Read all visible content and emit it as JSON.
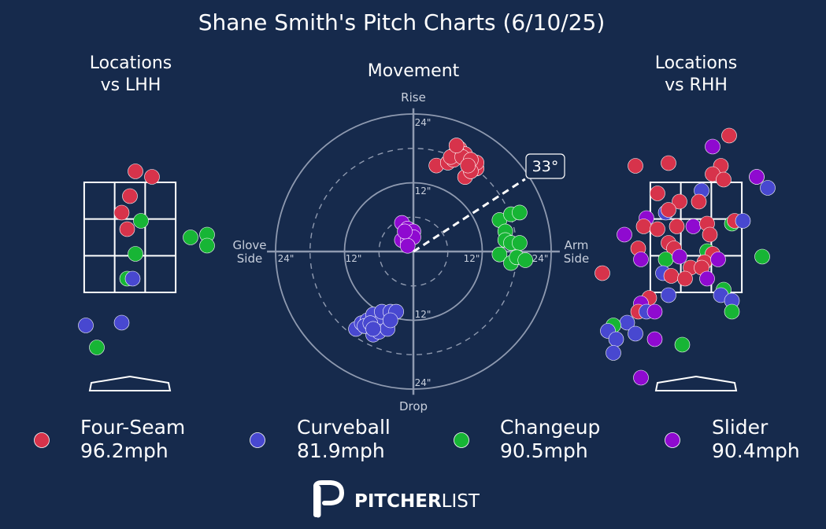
{
  "title": "Shane Smith's Pitch Charts (6/10/25)",
  "colors": {
    "background": "#162a4c",
    "text": "#ffffff",
    "muted": "#c8cfdc",
    "Four-Seam": "#d7334b",
    "Curveball": "#4848d0",
    "Changeup": "#17b535",
    "Slider": "#8f0ad0"
  },
  "panels": {
    "lhh_title": [
      "Locations",
      "vs LHH"
    ],
    "movement_title": "Movement",
    "rhh_title": [
      "Locations",
      "vs RHH"
    ]
  },
  "movement_labels": {
    "top": "Rise",
    "bottom": "Drop",
    "left": [
      "Glove",
      "Side"
    ],
    "right": [
      "Arm",
      "Side"
    ],
    "ring_inner": "12\"",
    "ring_outer": "24\"",
    "arm_angle": "33°"
  },
  "legend": [
    {
      "name": "Four-Seam",
      "velo": "96.2mph"
    },
    {
      "name": "Curveball",
      "velo": "81.9mph"
    },
    {
      "name": "Changeup",
      "velo": "90.5mph"
    },
    {
      "name": "Slider",
      "velo": "90.4mph"
    }
  ],
  "brand": {
    "bold": "PITCHER",
    "light": "LIST"
  },
  "chart_data": [
    {
      "type": "scatter",
      "title": "Locations vs LHH",
      "xlim": [
        -2,
        2
      ],
      "ylim": [
        0,
        5
      ],
      "zone": {
        "x": [
          -0.83,
          0.83
        ],
        "y": [
          1.5,
          3.5
        ]
      },
      "points": [
        {
          "pitch": "Four-Seam",
          "x": 0.1,
          "y": 3.7
        },
        {
          "pitch": "Four-Seam",
          "x": 0.4,
          "y": 3.6
        },
        {
          "pitch": "Four-Seam",
          "x": 0.0,
          "y": 3.25
        },
        {
          "pitch": "Four-Seam",
          "x": -0.15,
          "y": 2.95
        },
        {
          "pitch": "Four-Seam",
          "x": -0.05,
          "y": 2.65
        },
        {
          "pitch": "Changeup",
          "x": 0.2,
          "y": 2.8
        },
        {
          "pitch": "Changeup",
          "x": 1.1,
          "y": 2.5
        },
        {
          "pitch": "Changeup",
          "x": 1.4,
          "y": 2.55
        },
        {
          "pitch": "Changeup",
          "x": 1.4,
          "y": 2.35
        },
        {
          "pitch": "Changeup",
          "x": 0.1,
          "y": 2.2
        },
        {
          "pitch": "Changeup",
          "x": -0.05,
          "y": 1.75
        },
        {
          "pitch": "Curveball",
          "x": 0.05,
          "y": 1.75
        },
        {
          "pitch": "Curveball",
          "x": -0.8,
          "y": 0.9
        },
        {
          "pitch": "Curveball",
          "x": -0.15,
          "y": 0.95
        },
        {
          "pitch": "Changeup",
          "x": -0.6,
          "y": 0.5
        }
      ]
    },
    {
      "type": "scatter",
      "title": "Movement",
      "xlabel": "Glove Side / Arm Side",
      "ylabel": "Drop / Rise",
      "xlim": [
        -24,
        24
      ],
      "ylim": [
        -24,
        24
      ],
      "rings": [
        6,
        12,
        18,
        24
      ],
      "arm_angle_deg": 33,
      "points": [
        {
          "pitch": "Four-Seam",
          "x": 4,
          "y": 15
        },
        {
          "pitch": "Four-Seam",
          "x": 6,
          "y": 15.5
        },
        {
          "pitch": "Four-Seam",
          "x": 7,
          "y": 16
        },
        {
          "pitch": "Four-Seam",
          "x": 8,
          "y": 18
        },
        {
          "pitch": "Four-Seam",
          "x": 9,
          "y": 17
        },
        {
          "pitch": "Four-Seam",
          "x": 10,
          "y": 15.5
        },
        {
          "pitch": "Four-Seam",
          "x": 11,
          "y": 14.5
        },
        {
          "pitch": "Four-Seam",
          "x": 9,
          "y": 13
        },
        {
          "pitch": "Four-Seam",
          "x": 7.5,
          "y": 17.5
        },
        {
          "pitch": "Four-Seam",
          "x": 6.5,
          "y": 16.5
        },
        {
          "pitch": "Four-Seam",
          "x": 11,
          "y": 15.5
        },
        {
          "pitch": "Four-Seam",
          "x": 10,
          "y": 14
        },
        {
          "pitch": "Four-Seam",
          "x": 8.5,
          "y": 16.5
        },
        {
          "pitch": "Four-Seam",
          "x": 10,
          "y": 16
        },
        {
          "pitch": "Four-Seam",
          "x": 7.5,
          "y": 18.5
        },
        {
          "pitch": "Four-Seam",
          "x": 9.5,
          "y": 15
        },
        {
          "pitch": "Changeup",
          "x": 15,
          "y": 5.5
        },
        {
          "pitch": "Changeup",
          "x": 17,
          "y": 6.5
        },
        {
          "pitch": "Changeup",
          "x": 18.5,
          "y": 6.8
        },
        {
          "pitch": "Changeup",
          "x": 16,
          "y": 3.5
        },
        {
          "pitch": "Changeup",
          "x": 16,
          "y": 2
        },
        {
          "pitch": "Changeup",
          "x": 17,
          "y": 1.5
        },
        {
          "pitch": "Changeup",
          "x": 18.5,
          "y": 1.5
        },
        {
          "pitch": "Changeup",
          "x": 15,
          "y": -0.5
        },
        {
          "pitch": "Changeup",
          "x": 17,
          "y": -2
        },
        {
          "pitch": "Changeup",
          "x": 18,
          "y": -1
        },
        {
          "pitch": "Changeup",
          "x": 19.5,
          "y": -1.5
        },
        {
          "pitch": "Slider",
          "x": -2,
          "y": 5
        },
        {
          "pitch": "Slider",
          "x": -1,
          "y": 4
        },
        {
          "pitch": "Slider",
          "x": 0,
          "y": 3.5
        },
        {
          "pitch": "Slider",
          "x": -2,
          "y": 2
        },
        {
          "pitch": "Slider",
          "x": -1,
          "y": 2
        },
        {
          "pitch": "Slider",
          "x": 0,
          "y": 2.5
        },
        {
          "pitch": "Slider",
          "x": -1,
          "y": 1
        },
        {
          "pitch": "Slider",
          "x": -1.5,
          "y": 3.5
        },
        {
          "pitch": "Curveball",
          "x": -10,
          "y": -13.5
        },
        {
          "pitch": "Curveball",
          "x": -9,
          "y": -12.5
        },
        {
          "pitch": "Curveball",
          "x": -8,
          "y": -12
        },
        {
          "pitch": "Curveball",
          "x": -7,
          "y": -11
        },
        {
          "pitch": "Curveball",
          "x": -6.5,
          "y": -13
        },
        {
          "pitch": "Curveball",
          "x": -5.5,
          "y": -12
        },
        {
          "pitch": "Curveball",
          "x": -5.5,
          "y": -10.5
        },
        {
          "pitch": "Curveball",
          "x": -4,
          "y": -10.5
        },
        {
          "pitch": "Curveball",
          "x": -3,
          "y": -10.5
        },
        {
          "pitch": "Curveball",
          "x": -7,
          "y": -14.5
        },
        {
          "pitch": "Curveball",
          "x": -6,
          "y": -14
        },
        {
          "pitch": "Curveball",
          "x": -4.5,
          "y": -13.5
        },
        {
          "pitch": "Curveball",
          "x": -8.5,
          "y": -13
        },
        {
          "pitch": "Curveball",
          "x": -7.5,
          "y": -12.5
        },
        {
          "pitch": "Curveball",
          "x": -7,
          "y": -13.5
        },
        {
          "pitch": "Curveball",
          "x": -4,
          "y": -12
        }
      ]
    },
    {
      "type": "scatter",
      "title": "Locations vs RHH",
      "xlim": [
        -2,
        2
      ],
      "ylim": [
        0,
        5
      ],
      "zone": {
        "x": [
          -0.83,
          0.83
        ],
        "y": [
          1.5,
          3.5
        ]
      },
      "points": [
        {
          "pitch": "Four-Seam",
          "x": 0.6,
          "y": 4.35
        },
        {
          "pitch": "Slider",
          "x": 0.3,
          "y": 4.15
        },
        {
          "pitch": "Four-Seam",
          "x": -1.1,
          "y": 3.8
        },
        {
          "pitch": "Four-Seam",
          "x": -0.5,
          "y": 3.85
        },
        {
          "pitch": "Four-Seam",
          "x": 0.45,
          "y": 3.8
        },
        {
          "pitch": "Four-Seam",
          "x": 0.3,
          "y": 3.65
        },
        {
          "pitch": "Four-Seam",
          "x": 0.5,
          "y": 3.55
        },
        {
          "pitch": "Slider",
          "x": 1.1,
          "y": 3.6
        },
        {
          "pitch": "Curveball",
          "x": 1.3,
          "y": 3.4
        },
        {
          "pitch": "Four-Seam",
          "x": -0.7,
          "y": 3.3
        },
        {
          "pitch": "Curveball",
          "x": 0.1,
          "y": 3.35
        },
        {
          "pitch": "Four-Seam",
          "x": -0.3,
          "y": 3.15
        },
        {
          "pitch": "Four-Seam",
          "x": 0.05,
          "y": 3.15
        },
        {
          "pitch": "Curveball",
          "x": -0.55,
          "y": 2.95
        },
        {
          "pitch": "Four-Seam",
          "x": -0.5,
          "y": 3.0
        },
        {
          "pitch": "Slider",
          "x": -0.9,
          "y": 2.85
        },
        {
          "pitch": "Four-Seam",
          "x": -0.95,
          "y": 2.7
        },
        {
          "pitch": "Four-Seam",
          "x": -0.7,
          "y": 2.65
        },
        {
          "pitch": "Four-Seam",
          "x": -0.35,
          "y": 2.7
        },
        {
          "pitch": "Slider",
          "x": -0.05,
          "y": 2.7
        },
        {
          "pitch": "Four-Seam",
          "x": 0.2,
          "y": 2.75
        },
        {
          "pitch": "Four-Seam",
          "x": 0.25,
          "y": 2.55
        },
        {
          "pitch": "Changeup",
          "x": 0.65,
          "y": 2.75
        },
        {
          "pitch": "Four-Seam",
          "x": 0.7,
          "y": 2.8
        },
        {
          "pitch": "Curveball",
          "x": 0.85,
          "y": 2.8
        },
        {
          "pitch": "Slider",
          "x": -1.3,
          "y": 2.55
        },
        {
          "pitch": "Four-Seam",
          "x": -0.5,
          "y": 2.4
        },
        {
          "pitch": "Four-Seam",
          "x": -0.4,
          "y": 2.3
        },
        {
          "pitch": "Four-Seam",
          "x": -1.05,
          "y": 2.3
        },
        {
          "pitch": "Slider",
          "x": -1.0,
          "y": 2.1
        },
        {
          "pitch": "Changeup",
          "x": -0.55,
          "y": 2.1
        },
        {
          "pitch": "Slider",
          "x": -0.3,
          "y": 2.15
        },
        {
          "pitch": "Changeup",
          "x": 0.2,
          "y": 2.25
        },
        {
          "pitch": "Four-Seam",
          "x": 0.3,
          "y": 2.2
        },
        {
          "pitch": "Four-Seam",
          "x": 0.15,
          "y": 2.05
        },
        {
          "pitch": "Slider",
          "x": 0.4,
          "y": 2.1
        },
        {
          "pitch": "Four-Seam",
          "x": -0.1,
          "y": 1.95
        },
        {
          "pitch": "Four-Seam",
          "x": 0.1,
          "y": 1.95
        },
        {
          "pitch": "Curveball",
          "x": -0.6,
          "y": 1.85
        },
        {
          "pitch": "Four-Seam",
          "x": -0.45,
          "y": 1.8
        },
        {
          "pitch": "Four-Seam",
          "x": -0.2,
          "y": 1.75
        },
        {
          "pitch": "Slider",
          "x": 0.2,
          "y": 1.75
        },
        {
          "pitch": "Changeup",
          "x": 1.2,
          "y": 2.15
        },
        {
          "pitch": "Changeup",
          "x": 0.5,
          "y": 1.55
        },
        {
          "pitch": "Curveball",
          "x": 0.45,
          "y": 1.45
        },
        {
          "pitch": "Curveball",
          "x": 0.65,
          "y": 1.35
        },
        {
          "pitch": "Curveball",
          "x": -0.5,
          "y": 1.45
        },
        {
          "pitch": "Four-Seam",
          "x": -0.85,
          "y": 1.4
        },
        {
          "pitch": "Slider",
          "x": -1.0,
          "y": 1.3
        },
        {
          "pitch": "Four-Seam",
          "x": -1.05,
          "y": 1.15
        },
        {
          "pitch": "Curveball",
          "x": -0.9,
          "y": 1.15
        },
        {
          "pitch": "Slider",
          "x": -0.75,
          "y": 1.15
        },
        {
          "pitch": "Changeup",
          "x": 0.65,
          "y": 1.15
        },
        {
          "pitch": "Curveball",
          "x": -1.25,
          "y": 0.95
        },
        {
          "pitch": "Changeup",
          "x": -1.5,
          "y": 0.9
        },
        {
          "pitch": "Curveball",
          "x": -1.6,
          "y": 0.8
        },
        {
          "pitch": "Curveball",
          "x": -1.1,
          "y": 0.75
        },
        {
          "pitch": "Curveball",
          "x": -1.45,
          "y": 0.65
        },
        {
          "pitch": "Slider",
          "x": -0.75,
          "y": 0.65
        },
        {
          "pitch": "Curveball",
          "x": -1.5,
          "y": 0.4
        },
        {
          "pitch": "Changeup",
          "x": -0.25,
          "y": 0.55
        },
        {
          "pitch": "Slider",
          "x": -1.0,
          "y": -0.05
        },
        {
          "pitch": "Four-Seam",
          "x": -1.7,
          "y": 1.85
        },
        {
          "pitch": "Slider",
          "x": 1.1,
          "y": 3.6
        }
      ]
    }
  ]
}
